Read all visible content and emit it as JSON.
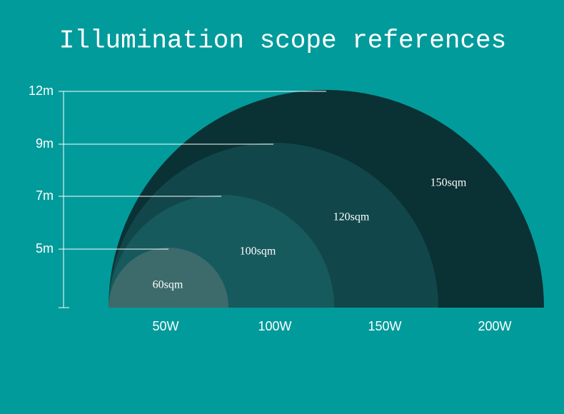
{
  "title": "Illumination scope references",
  "heights": [
    "5m",
    "7m",
    "9m",
    "12m"
  ],
  "areas": [
    "60sqm",
    "100sqm",
    "120sqm",
    "150sqm"
  ],
  "powers": [
    "50W",
    "100W",
    "150W",
    "200W"
  ]
}
